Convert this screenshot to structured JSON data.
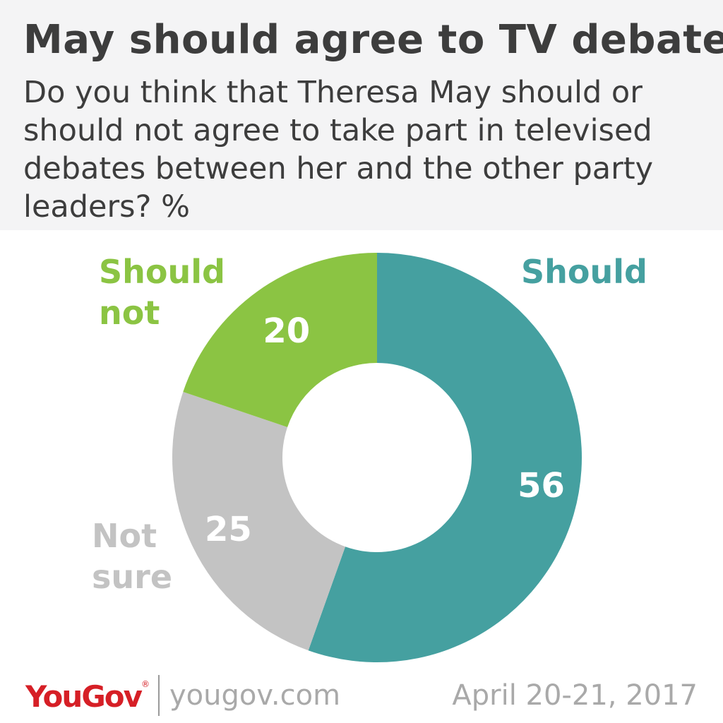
{
  "header": {
    "title": "May should agree to TV debates",
    "subtitle": "Do you think that Theresa May should or should not agree to take part in televised debates between her and the other party leaders? %"
  },
  "chart_data": {
    "type": "pie",
    "donut": true,
    "slices": [
      {
        "label_lines": [
          "Should"
        ],
        "value": 56,
        "value_label": "56",
        "color": "#45a0a0"
      },
      {
        "label_lines": [
          "Not",
          "sure"
        ],
        "value": 25,
        "value_label": "25",
        "color": "#c3c3c3"
      },
      {
        "label_lines": [
          "Should",
          "not"
        ],
        "value": 20,
        "value_label": "20",
        "color": "#8bc443"
      }
    ],
    "value_label_color": "#ffffff"
  },
  "footer": {
    "brand": "YouGov",
    "brand_mark": "®",
    "website": "yougov.com",
    "date": "April 20-21, 2017"
  }
}
